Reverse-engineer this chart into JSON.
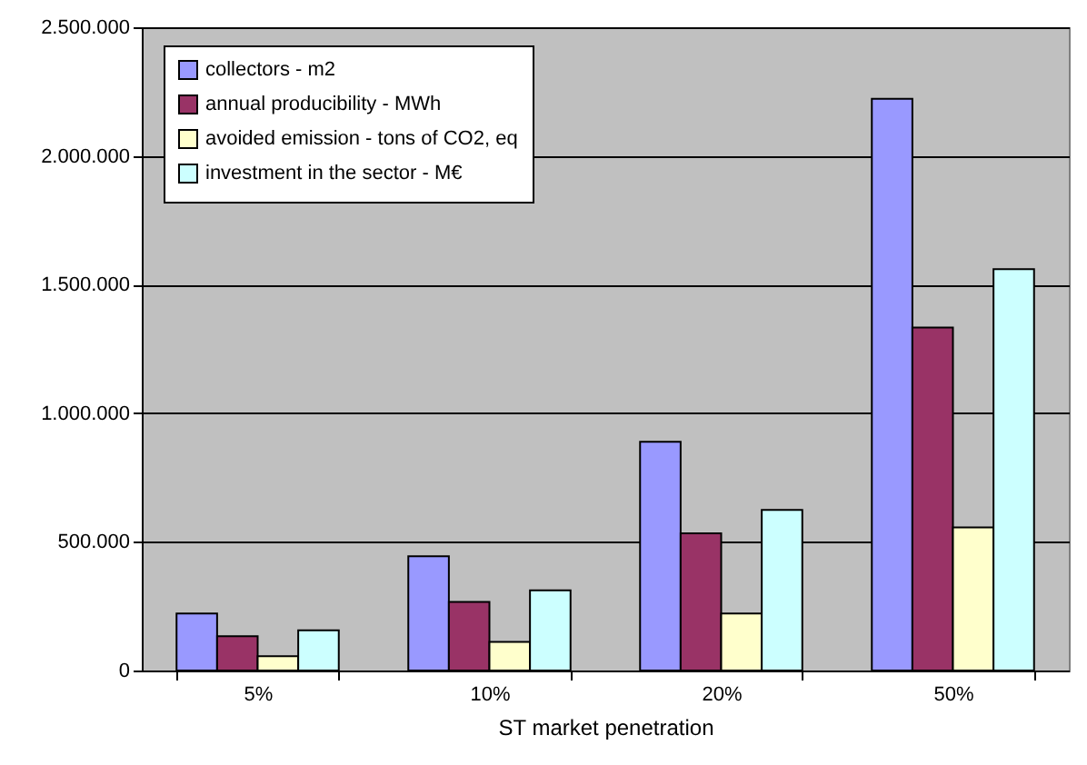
{
  "chart_data": {
    "type": "bar",
    "xlabel": "ST market penetration",
    "categories": [
      "5%",
      "10%",
      "20%",
      "50%"
    ],
    "series": [
      {
        "name": "collectors - m2",
        "color": "#9999ff",
        "values": [
          222000,
          444000,
          889000,
          2222000
        ]
      },
      {
        "name": "annual producibility - MWh",
        "color": "#993366",
        "values": [
          133000,
          267000,
          533000,
          1333000
        ]
      },
      {
        "name": "avoided emission - tons of CO2, eq",
        "color": "#ffffcc",
        "values": [
          56000,
          111000,
          222000,
          556000
        ]
      },
      {
        "name": "investment in the sector - M€",
        "color": "#ccffff",
        "values": [
          156000,
          312000,
          624000,
          1560000
        ]
      }
    ],
    "ylim": [
      0,
      2500000
    ],
    "yticks": [
      {
        "value": 0,
        "label": "0"
      },
      {
        "value": 500000,
        "label": "500.000"
      },
      {
        "value": 1000000,
        "label": "1.000.000"
      },
      {
        "value": 1500000,
        "label": "1.500.000"
      },
      {
        "value": 2000000,
        "label": "2.000.000"
      },
      {
        "value": 2500000,
        "label": "2.500.000"
      }
    ],
    "grid": "y",
    "legend": "top left"
  }
}
